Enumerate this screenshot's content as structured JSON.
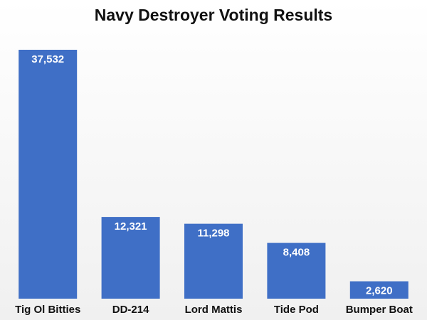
{
  "chart_data": {
    "type": "bar",
    "title": "Navy Destroyer Voting Results",
    "categories": [
      "Tig Ol Bitties",
      "DD-214",
      "Lord Mattis",
      "Tide Pod",
      "Bumper Boat"
    ],
    "values": [
      37532,
      12321,
      11298,
      8408,
      2620
    ],
    "value_labels": [
      "37,532",
      "12,321",
      "11,298",
      "8,408",
      "2,620"
    ],
    "color": "#3f6fc6"
  }
}
